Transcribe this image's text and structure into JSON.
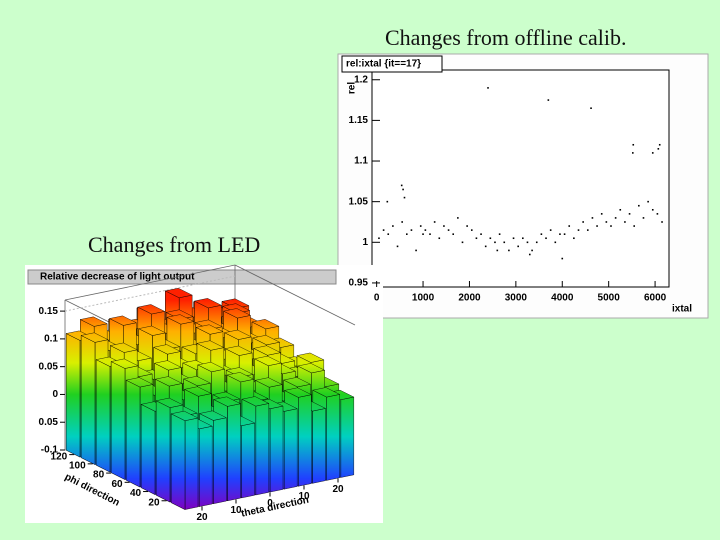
{
  "slide": {
    "title_right": "Changes from offline calib.",
    "title_left": "Changes from LED"
  },
  "chart_data": [
    {
      "type": "scatter",
      "title": "rel:ixtal {it==17}",
      "x_label": "ixtal",
      "y_label": "rel",
      "color": "#000000",
      "xlim": [
        -100,
        6300
      ],
      "ylim": [
        0.945,
        1.212
      ],
      "xticks": [
        0,
        1000,
        2000,
        3000,
        4000,
        5000,
        6000
      ],
      "yticks": [
        0.95,
        1,
        1.05,
        1.1,
        1.15,
        1.2
      ],
      "x": [
        50,
        150,
        250,
        350,
        450,
        550,
        650,
        750,
        850,
        950,
        1050,
        1150,
        1250,
        1350,
        1450,
        1550,
        1650,
        1750,
        1850,
        1950,
        2050,
        2150,
        2250,
        2350,
        2450,
        2550,
        2650,
        2750,
        2850,
        2950,
        3050,
        3150,
        3250,
        3350,
        3450,
        3550,
        3650,
        3750,
        3850,
        3950,
        4050,
        4150,
        4250,
        4350,
        4450,
        4550,
        4650,
        4750,
        4850,
        4950,
        5050,
        5150,
        5250,
        5350,
        5450,
        5550,
        5650,
        5750,
        5850,
        5950,
        6050,
        6150,
        540,
        600,
        2400,
        3700,
        4620,
        5520,
        5530,
        6100,
        6070,
        5950,
        230,
        570,
        1000,
        2600,
        3300,
        4000
      ],
      "values": [
        1.005,
        1.015,
        1.01,
        1.02,
        0.995,
        1.025,
        1.01,
        1.015,
        0.99,
        1.02,
        1.015,
        1.01,
        1.025,
        1.005,
        1.02,
        1.015,
        1.01,
        1.03,
        1.0,
        1.02,
        1.015,
        1.005,
        1.01,
        0.995,
        1.005,
        1.0,
        1.01,
        1.0,
        0.99,
        1.005,
        0.995,
        1.005,
        1.0,
        0.99,
        1.0,
        1.01,
        1.005,
        1.015,
        1.0,
        1.01,
        1.01,
        1.02,
        1.005,
        1.015,
        1.025,
        1.015,
        1.03,
        1.02,
        1.035,
        1.025,
        1.02,
        1.03,
        1.04,
        1.025,
        1.035,
        1.02,
        1.045,
        1.03,
        1.05,
        1.04,
        1.035,
        1.025,
        1.07,
        1.055,
        1.19,
        1.175,
        1.165,
        1.11,
        1.12,
        1.12,
        1.115,
        1.11,
        1.05,
        1.065,
        1.01,
        0.99,
        0.985,
        0.98
      ]
    },
    {
      "type": "lego",
      "title": "Relative decrease of light output",
      "x_label": "theta direction",
      "y_label": "phi direction",
      "xlim": [
        -25,
        25
      ],
      "ylim": [
        0,
        130
      ],
      "zlim": [
        -0.1,
        0.17
      ],
      "xticks": [
        {
          "value": -20,
          "label": "20"
        },
        {
          "value": -10,
          "label": "10"
        },
        0,
        10,
        20
      ],
      "yticks": [
        20,
        40,
        60,
        80,
        100,
        120
      ],
      "zticks": [
        -0.1,
        {
          "value": -0.05,
          "label": "0.05"
        },
        0,
        0.05,
        0.1,
        0.15
      ],
      "z": [
        [
          0.06,
          0.04,
          0.05,
          0.07,
          0.03,
          0.06,
          0.05,
          0.04,
          0.06,
          0.03,
          0.05,
          0.04
        ],
        [
          0.07,
          0.05,
          0.08,
          0.04,
          0.06,
          0.09,
          0.05,
          0.07,
          0.04,
          0.06,
          0.08,
          0.05
        ],
        [
          0.05,
          0.09,
          0.06,
          0.08,
          0.1,
          0.06,
          0.08,
          0.05,
          0.09,
          0.07,
          0.06,
          0.08
        ],
        [
          0.08,
          0.06,
          0.1,
          0.07,
          0.09,
          0.12,
          0.07,
          0.1,
          0.06,
          0.09,
          0.07,
          0.06
        ],
        [
          0.1,
          0.08,
          0.07,
          0.11,
          0.08,
          0.1,
          0.13,
          0.08,
          0.11,
          0.07,
          0.09,
          0.08
        ],
        [
          0.09,
          0.11,
          0.09,
          0.13,
          0.1,
          0.14,
          0.09,
          0.12,
          0.1,
          0.13,
          0.08,
          0.1
        ],
        [
          0.12,
          0.1,
          0.14,
          0.1,
          0.15,
          0.11,
          0.13,
          0.1,
          0.14,
          0.09,
          0.12,
          0.09
        ],
        [
          0.11,
          0.13,
          0.1,
          0.12,
          0.11,
          0.13,
          0.1,
          0.15,
          0.11,
          0.12,
          0.1,
          0.11
        ]
      ]
    }
  ]
}
